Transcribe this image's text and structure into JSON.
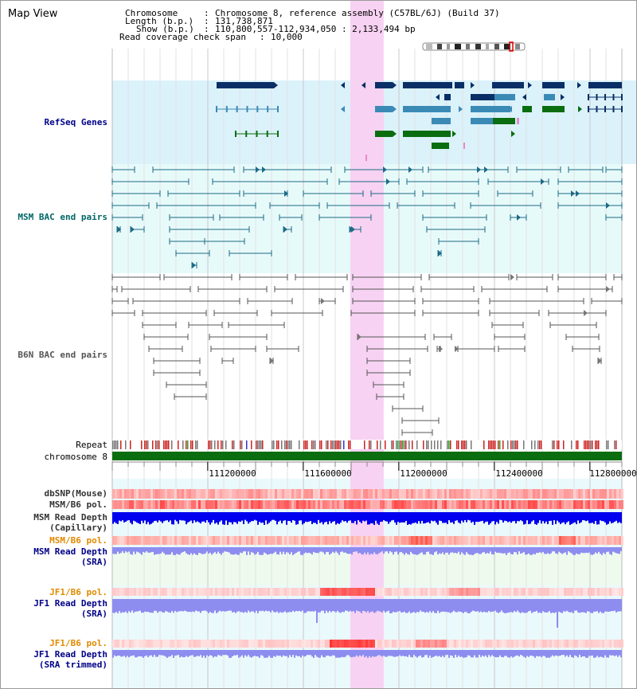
{
  "title": "Map View",
  "header": {
    "chromosome_label": "Chromosome",
    "chromosome_value": "Chromosome 8, reference assembly (C57BL/6J) (Build 37)",
    "length_label": "Length (b.p.)",
    "length_value": "131,738,871",
    "show_label": "Show (b.p.)",
    "show_value": "110,800,557-112,934,050 : 2,133,494 bp",
    "coverage_label": "Read coverage check span",
    "coverage_value": "10,000"
  },
  "view": {
    "start": 110800557,
    "end": 112934050,
    "highlight_start": 111797000,
    "highlight_end": 111937000
  },
  "axis": {
    "ticks": [
      {
        "pos": 111200000,
        "label": "111200000"
      },
      {
        "pos": 111600000,
        "label": "111600000"
      },
      {
        "pos": 112000000,
        "label": "112000000"
      },
      {
        "pos": 112400000,
        "label": "112400000"
      },
      {
        "pos": 112800000,
        "label": "112800000"
      }
    ]
  },
  "tracks": {
    "refseq": "RefSeq Genes",
    "msm_bac": "MSM BAC end pairs",
    "b6n_bac": "B6N BAC end pairs",
    "repeat": "Repeat",
    "chromosome": "chromosome 8",
    "dbsnp": "dbSNP(Mouse)",
    "msm_b6_pol_1": "MSM/B6 pol.",
    "msm_depth_cap_1": "MSM Read Depth",
    "msm_depth_cap_2": "(Capillary)",
    "msm_b6_pol_2": "MSM/B6 pol.",
    "msm_depth_sra_1": "MSM Read Depth",
    "msm_depth_sra_2": "(SRA)",
    "jf1_b6_pol_1": "JF1/B6 pol.",
    "jf1_depth_sra_1": "JF1 Read Depth",
    "jf1_depth_sra_2": "(SRA)",
    "jf1_b6_pol_2": "JF1/B6 pol.",
    "jf1_depth_trim_1": "JF1 Read Depth",
    "jf1_depth_trim_2": "(SRA trimmed)"
  },
  "colors": {
    "refseq_bg": "#dbf2fb",
    "bac_bg": "#e7fafa",
    "highlight": "#f7d2f2",
    "gene_dark": "#0a2f66",
    "gene_mid": "#3b8ab6",
    "gene_green": "#0a6d10",
    "msm_bac": "#1c6a86",
    "b6n_bac": "#555555",
    "chromosome": "#0a6d10",
    "depth_dark": "#0000ee",
    "depth_light": "#8d8df0"
  }
}
